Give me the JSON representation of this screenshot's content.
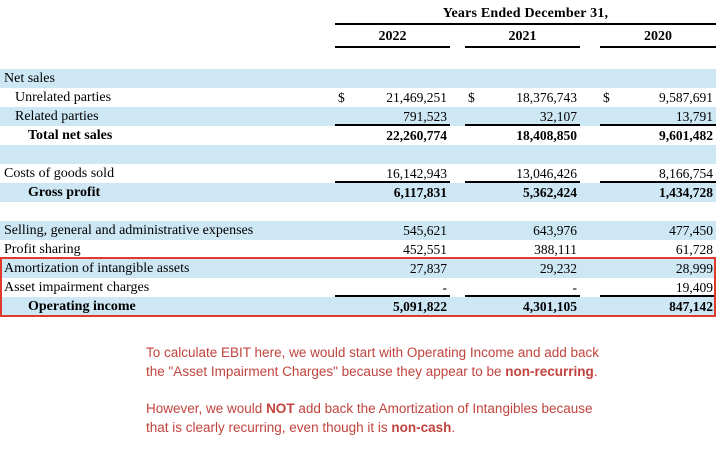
{
  "table": {
    "header": {
      "period_label": "Years Ended December 31,",
      "years": [
        "2022",
        "2021",
        "2020"
      ]
    },
    "rows": [
      {
        "label": "Net sales",
        "values": [
          "",
          "",
          ""
        ],
        "shade": true,
        "indent": 0
      },
      {
        "label": "Unrelated parties",
        "values": [
          "21,469,251",
          "18,376,743",
          "9,587,691"
        ],
        "dollar": true,
        "indent": 1
      },
      {
        "label": "Related parties",
        "values": [
          "791,523",
          "32,107",
          "13,791"
        ],
        "shade": true,
        "indent": 1,
        "rule_below": true
      },
      {
        "label": "Total net sales",
        "values": [
          "22,260,774",
          "18,408,850",
          "9,601,482"
        ],
        "bold": true,
        "indent": 2
      },
      {
        "label": "",
        "values": [
          "",
          "",
          ""
        ],
        "shade": true,
        "blank": true
      },
      {
        "label": "Costs of goods sold",
        "values": [
          "16,142,943",
          "13,046,426",
          "8,166,754"
        ],
        "indent": 0,
        "rule_below": true
      },
      {
        "label": "Gross profit",
        "values": [
          "6,117,831",
          "5,362,424",
          "1,434,728"
        ],
        "bold": true,
        "shade": true,
        "indent": 2
      },
      {
        "label": "",
        "values": [
          "",
          "",
          ""
        ],
        "blank": true
      },
      {
        "label": "Selling, general and administrative expenses",
        "values": [
          "545,621",
          "643,976",
          "477,450"
        ],
        "shade": true,
        "indent": 0
      },
      {
        "label": "Profit sharing",
        "values": [
          "452,551",
          "388,111",
          "61,728"
        ],
        "indent": 0
      },
      {
        "label": "Amortization of intangible assets",
        "values": [
          "27,837",
          "29,232",
          "28,999"
        ],
        "shade": true,
        "indent": 0,
        "boxed": true
      },
      {
        "label": "Asset impairment charges",
        "values": [
          "-",
          "-",
          "19,409"
        ],
        "indent": 0,
        "rule_below": true,
        "boxed": true
      },
      {
        "label": "Operating income",
        "values": [
          "5,091,822",
          "4,301,105",
          "847,142"
        ],
        "bold": true,
        "shade": true,
        "indent": 2,
        "boxed": true
      }
    ]
  },
  "annotation": {
    "paragraphs": [
      [
        {
          "text": "To calculate EBIT here, we would start with Operating Income and add back the \"Asset Impairment Charges\" because they appear to be "
        },
        {
          "text": "non-recurring",
          "bold": true
        },
        {
          "text": "."
        }
      ],
      [
        {
          "text": "However, we would "
        },
        {
          "text": "NOT",
          "bold": true
        },
        {
          "text": " add back the Amortization of Intangibles because that is clearly recurring, even though it is "
        },
        {
          "text": "non-cash",
          "bold": true
        },
        {
          "text": "."
        }
      ]
    ]
  },
  "colors": {
    "row_shade": "#cde7f5",
    "box_border": "#e03a2e",
    "annotation_text": "#c2433d",
    "rule": "#000000"
  }
}
